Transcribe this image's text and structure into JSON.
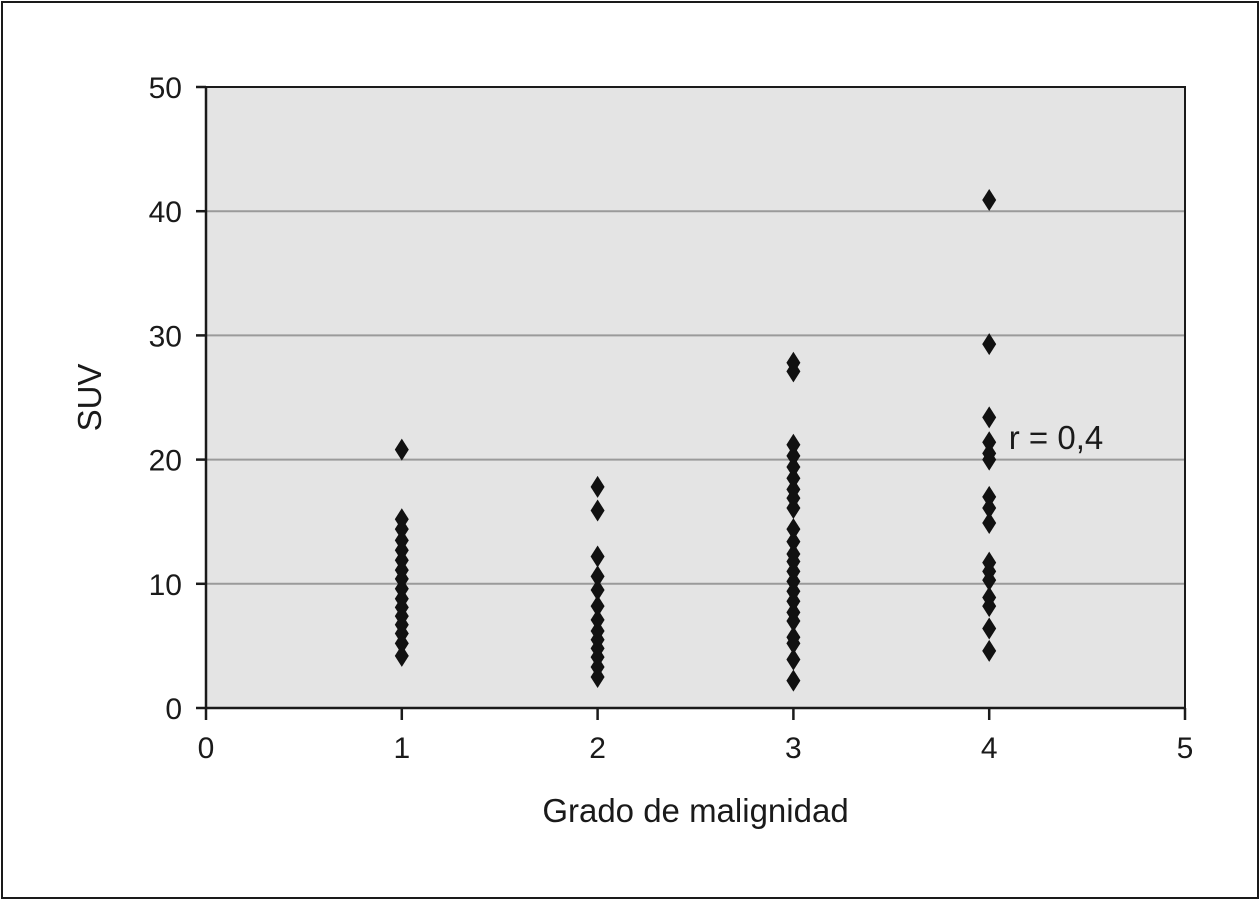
{
  "chart_data": {
    "type": "scatter",
    "xlabel": "Grado de malignidad",
    "ylabel": "SUV",
    "xlim": [
      0,
      5
    ],
    "ylim": [
      0,
      50
    ],
    "x_ticks": [
      "0",
      "1",
      "2",
      "3",
      "4",
      "5"
    ],
    "y_ticks": [
      "0",
      "10",
      "20",
      "30",
      "40",
      "50"
    ],
    "grid": "horizontal",
    "marker": "diamond",
    "colors": {
      "plot_background": "#e4e4e4",
      "gridline": "#9a9a9a",
      "marker": "#111111",
      "axis": "#1a1a1a"
    },
    "annotation": {
      "text": "r = 0,4",
      "x": 4.1,
      "y": 21.8
    },
    "series": [
      {
        "points": [
          [
            1,
            20.8
          ],
          [
            1,
            15.2
          ],
          [
            1,
            14.4
          ],
          [
            1,
            13.5
          ],
          [
            1,
            12.7
          ],
          [
            1,
            11.9
          ],
          [
            1,
            11.1
          ],
          [
            1,
            10.4
          ],
          [
            1,
            9.6
          ],
          [
            1,
            8.8
          ],
          [
            1,
            8.1
          ],
          [
            1,
            7.4
          ],
          [
            1,
            6.7
          ],
          [
            1,
            6.0
          ],
          [
            1,
            5.2
          ],
          [
            1,
            4.2
          ],
          [
            2,
            17.8
          ],
          [
            2,
            15.9
          ],
          [
            2,
            12.2
          ],
          [
            2,
            10.6
          ],
          [
            2,
            9.5
          ],
          [
            2,
            8.2
          ],
          [
            2,
            7.1
          ],
          [
            2,
            6.2
          ],
          [
            2,
            5.5
          ],
          [
            2,
            4.8
          ],
          [
            2,
            4.1
          ],
          [
            2,
            3.3
          ],
          [
            2,
            2.5
          ],
          [
            3,
            27.8
          ],
          [
            3,
            27.1
          ],
          [
            3,
            21.2
          ],
          [
            3,
            20.3
          ],
          [
            3,
            19.4
          ],
          [
            3,
            18.5
          ],
          [
            3,
            17.6
          ],
          [
            3,
            16.9
          ],
          [
            3,
            16.1
          ],
          [
            3,
            14.4
          ],
          [
            3,
            13.4
          ],
          [
            3,
            12.4
          ],
          [
            3,
            11.8
          ],
          [
            3,
            11.0
          ],
          [
            3,
            10.2
          ],
          [
            3,
            9.4
          ],
          [
            3,
            8.6
          ],
          [
            3,
            7.7
          ],
          [
            3,
            7.0
          ],
          [
            3,
            5.7
          ],
          [
            3,
            5.2
          ],
          [
            3,
            3.9
          ],
          [
            3,
            2.2
          ],
          [
            4,
            40.9
          ],
          [
            4,
            29.3
          ],
          [
            4,
            23.4
          ],
          [
            4,
            21.4
          ],
          [
            4,
            20.5
          ],
          [
            4,
            20.0
          ],
          [
            4,
            17.0
          ],
          [
            4,
            16.1
          ],
          [
            4,
            14.9
          ],
          [
            4,
            11.7
          ],
          [
            4,
            11.0
          ],
          [
            4,
            10.3
          ],
          [
            4,
            8.9
          ],
          [
            4,
            8.2
          ],
          [
            4,
            6.4
          ],
          [
            4,
            4.6
          ]
        ]
      }
    ]
  }
}
